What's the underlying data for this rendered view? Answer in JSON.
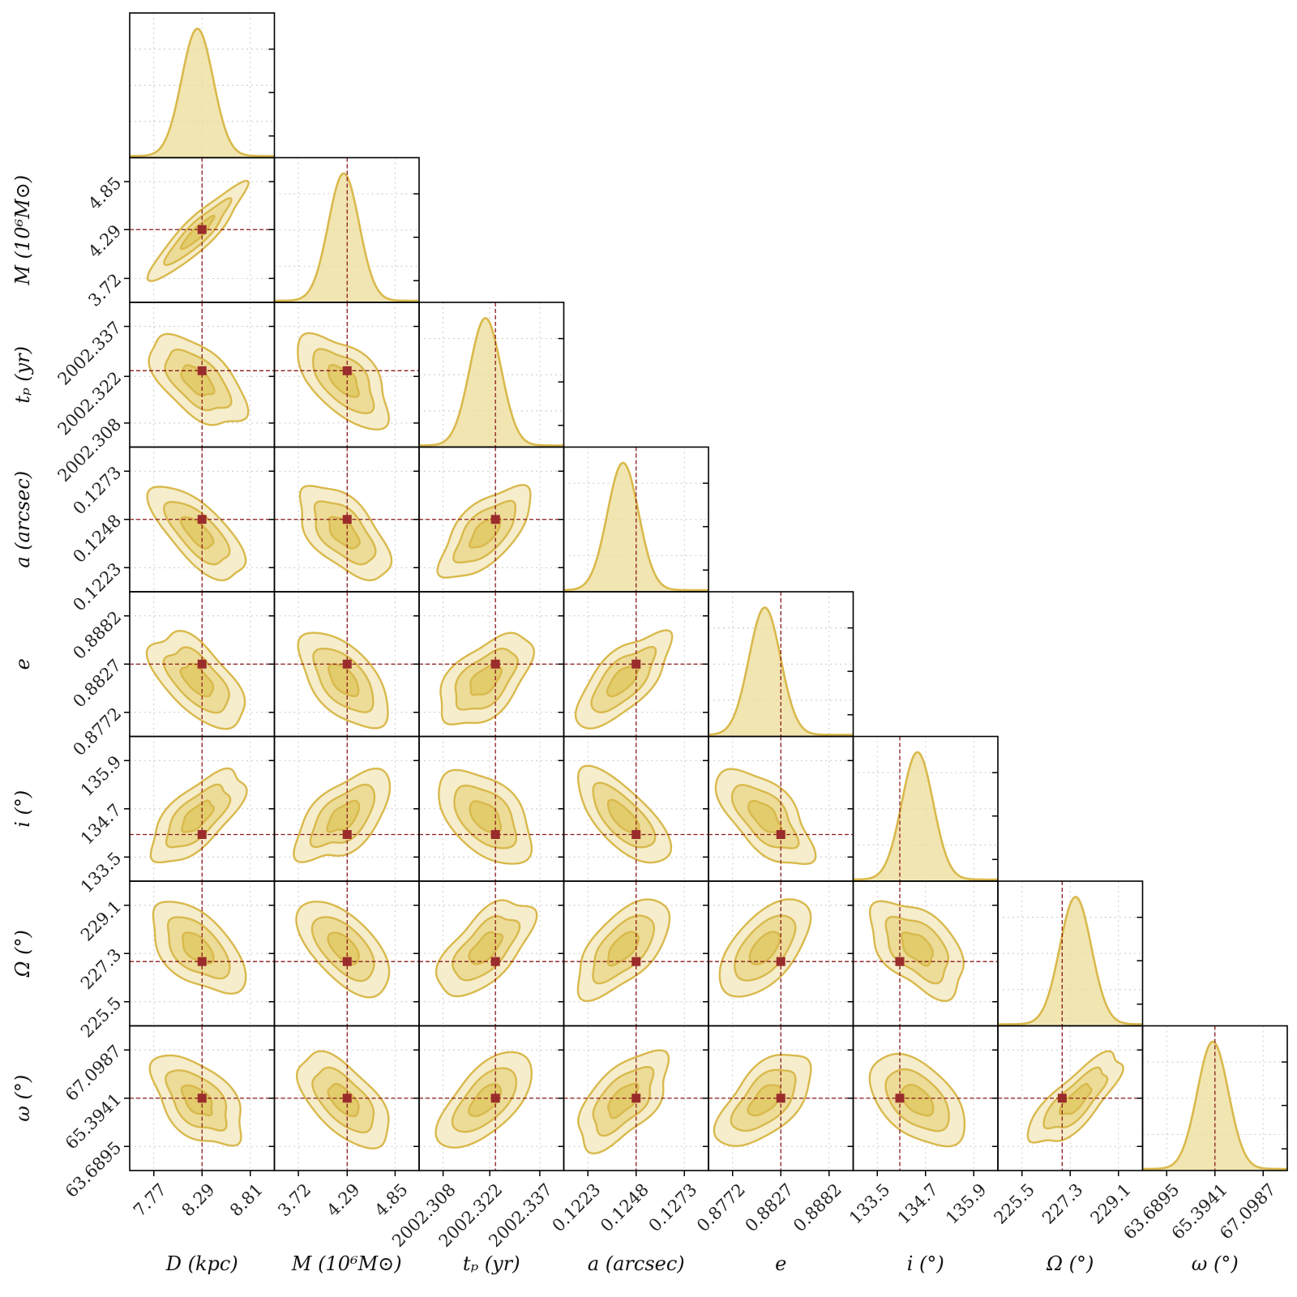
{
  "chart_data": {
    "type": "corner",
    "parameters": [
      {
        "label": "D (kpc)",
        "ticks": [
          "7.77",
          "8.29",
          "8.81"
        ],
        "tick_values": [
          7.77,
          8.29,
          8.81
        ],
        "range": [
          7.51,
          9.07
        ],
        "mean": 8.24,
        "std": 0.17,
        "truth": 8.29
      },
      {
        "label": "M (10⁶M⊙)",
        "ticks": [
          "3.72",
          "4.29",
          "4.85"
        ],
        "tick_values": [
          3.72,
          4.29,
          4.85
        ],
        "range": [
          3.44,
          5.13
        ],
        "mean": 4.25,
        "std": 0.18,
        "truth": 4.29
      },
      {
        "label": "tₚ (yr)",
        "ticks": [
          "2002.308",
          "2002.322",
          "2002.337"
        ],
        "tick_values": [
          2002.308,
          2002.322,
          2002.337
        ],
        "range": [
          2002.3008,
          2002.3442
        ],
        "mean": 2002.3207,
        "std": 0.0047,
        "truth": 2002.3237
      },
      {
        "label": "a (arcsec)",
        "ticks": [
          "0.1223",
          "0.1248",
          "0.1273"
        ],
        "tick_values": [
          0.1223,
          0.1248,
          0.1273
        ],
        "range": [
          0.12105,
          0.12855
        ],
        "mean": 0.12412,
        "std": 0.00081,
        "truth": 0.1248
      },
      {
        "label": "e",
        "ticks": [
          "0.8772",
          "0.8827",
          "0.8882"
        ],
        "tick_values": [
          0.8772,
          0.8827,
          0.8882
        ],
        "range": [
          0.87445,
          0.89095
        ],
        "mean": 0.88087,
        "std": 0.0018,
        "truth": 0.8827
      },
      {
        "label": "i (°)",
        "ticks": [
          "133.5",
          "134.7",
          "135.9"
        ],
        "tick_values": [
          133.5,
          134.7,
          135.9
        ],
        "range": [
          132.9,
          136.5
        ],
        "mean": 134.5,
        "std": 0.39,
        "truth": 134.06
      },
      {
        "label": "Ω (°)",
        "ticks": [
          "225.5",
          "227.3",
          "229.1"
        ],
        "tick_values": [
          225.5,
          227.3,
          229.1
        ],
        "range": [
          224.6,
          230.0
        ],
        "mean": 227.5,
        "std": 0.59,
        "truth": 227.0
      },
      {
        "label": "ω (°)",
        "ticks": [
          "63.6895",
          "65.3941",
          "67.0987"
        ],
        "tick_values": [
          63.6895,
          65.3941,
          67.0987
        ],
        "range": [
          62.8372,
          67.951
        ],
        "mean": 65.32,
        "std": 0.55,
        "truth": 65.3941
      }
    ],
    "correlations": [
      [
        1,
        0.9,
        -0.6,
        -0.7,
        -0.6,
        0.7,
        -0.6,
        -0.6
      ],
      [
        0.9,
        1,
        -0.6,
        -0.6,
        -0.6,
        0.6,
        -0.6,
        -0.6
      ],
      [
        -0.6,
        -0.6,
        1,
        0.7,
        0.6,
        -0.5,
        0.6,
        0.6
      ],
      [
        -0.7,
        -0.6,
        0.7,
        1,
        0.7,
        -0.7,
        0.6,
        0.6
      ],
      [
        -0.6,
        -0.6,
        0.6,
        0.7,
        1,
        -0.6,
        0.6,
        0.6
      ],
      [
        0.7,
        0.6,
        -0.5,
        -0.7,
        -0.6,
        1,
        -0.5,
        -0.5
      ],
      [
        -0.6,
        -0.6,
        0.6,
        0.6,
        0.6,
        -0.5,
        1,
        0.8
      ],
      [
        -0.6,
        -0.6,
        0.6,
        0.6,
        0.6,
        -0.5,
        0.8,
        1
      ]
    ],
    "contour_levels_sigma": [
      1,
      2,
      3
    ],
    "colors": {
      "posterior": "#d9b94c",
      "fill_1sigma": "#e2cc6c",
      "fill_2sigma": "#ecdc98",
      "fill_3sigma": "#f5edcc",
      "truth": "#8b1a1a",
      "marker": "#9b2c2c"
    },
    "grid": true
  }
}
